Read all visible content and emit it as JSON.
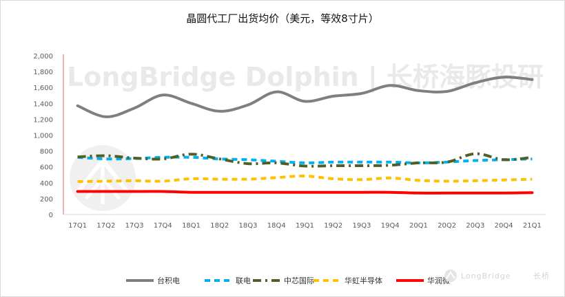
{
  "chart_data": {
    "type": "line",
    "title": "晶圆代工厂出货均价（美元，等效8寸片）",
    "xlabel": "",
    "ylabel": "",
    "categories": [
      "17Q1",
      "17Q2",
      "17Q3",
      "17Q4",
      "18Q1",
      "18Q2",
      "18Q3",
      "18Q4",
      "19Q1",
      "19Q2",
      "19Q3",
      "19Q4",
      "20Q1",
      "20Q2",
      "20Q3",
      "20Q4",
      "21Q1"
    ],
    "ylim": [
      0,
      2000
    ],
    "yticks": [
      0,
      200,
      400,
      600,
      800,
      1000,
      1200,
      1400,
      1600,
      1800,
      2000
    ],
    "ytick_labels": [
      "0",
      "200",
      "400",
      "600",
      "800",
      "1,000",
      "1,200",
      "1,400",
      "1,600",
      "1,800",
      "2,000"
    ],
    "grid": false,
    "legend_position": "bottom",
    "series": [
      {
        "name": "台积电",
        "color": "#7f7f7f",
        "style": "solid",
        "values": [
          1370,
          1230,
          1340,
          1505,
          1400,
          1300,
          1380,
          1545,
          1425,
          1490,
          1525,
          1625,
          1560,
          1550,
          1660,
          1730,
          1700
        ]
      },
      {
        "name": "联电",
        "color": "#00b0f0",
        "style": "dash",
        "values": [
          720,
          700,
          705,
          720,
          720,
          700,
          690,
          670,
          650,
          660,
          660,
          660,
          650,
          660,
          680,
          690,
          700
        ]
      },
      {
        "name": "中芯国际",
        "color": "#4e5f27",
        "style": "dashdot",
        "values": [
          725,
          740,
          710,
          700,
          760,
          700,
          640,
          650,
          610,
          615,
          615,
          620,
          650,
          660,
          765,
          690,
          720
        ]
      },
      {
        "name": "华虹半导体",
        "color": "#ffc000",
        "style": "dash",
        "values": [
          415,
          420,
          425,
          420,
          450,
          445,
          445,
          465,
          485,
          450,
          440,
          460,
          430,
          420,
          425,
          435,
          445
        ]
      },
      {
        "name": "华润微",
        "color": "#ff0000",
        "style": "solid",
        "values": [
          290,
          290,
          290,
          290,
          280,
          280,
          280,
          280,
          280,
          280,
          280,
          280,
          270,
          270,
          270,
          270,
          275
        ]
      }
    ]
  },
  "watermark": {
    "text": "LongBridge Dolphin | 长桥海豚投研",
    "icon": "longbridge-bridge-logo"
  },
  "brand": {
    "text": "LongBridge",
    "suffix": "长桥",
    "icon": "longbridge-logo-icon"
  }
}
